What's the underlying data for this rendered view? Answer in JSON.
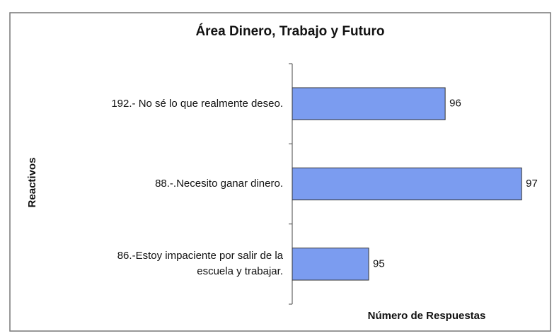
{
  "chart_data": {
    "type": "bar",
    "orientation": "horizontal",
    "title": "Área Dinero, Trabajo y Futuro",
    "categories": [
      "192.- No sé lo que realmente deseo.",
      "88.-.Necesito ganar dinero.",
      "86.-Estoy impaciente por salir de la\nescuela y trabajar."
    ],
    "values": [
      96,
      97,
      95
    ],
    "color": "#7b9cf0",
    "xlim": [
      94,
      97.35
    ],
    "xlabel": "Número de Respuestas",
    "ylabel": "Reactivos"
  }
}
